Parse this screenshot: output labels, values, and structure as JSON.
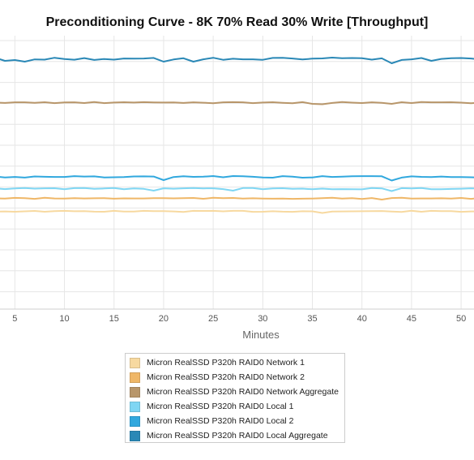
{
  "chart_data": {
    "type": "line",
    "title": "Preconditioning Curve - 8K 70% Read 30% Write [Throughput]",
    "xlabel": "Minutes",
    "ylabel": "",
    "x_visible_range": [
      3.5,
      51.3
    ],
    "x_ticks": [
      5,
      10,
      15,
      20,
      25,
      30,
      35,
      40,
      45,
      50
    ],
    "x_tick_labels": [
      "5",
      "10",
      "15",
      "20",
      "25",
      "30",
      "35",
      "40",
      "45",
      "50"
    ],
    "y_range_note": "y-axis values not visible",
    "grid": true,
    "legend_position": "bottom",
    "series": [
      {
        "name": "Micron RealSSD P320h RAID0 Network 1",
        "color": "#f7d9a0",
        "level": 260.5,
        "noise": 0.7,
        "dips": [
          [
            36,
            262.5
          ]
        ]
      },
      {
        "name": "Micron RealSSD P320h RAID0 Network 2",
        "color": "#efb768",
        "level": 244.5,
        "noise": 0.7,
        "dips": [
          [
            42,
            246
          ]
        ]
      },
      {
        "name": "Micron RealSSD P320h RAID0 Network Aggregate",
        "color": "#b8966a",
        "level": 126.5,
        "noise": 0.8,
        "dips": [
          [
            35,
            128
          ],
          [
            36,
            128.5
          ],
          [
            43,
            128
          ]
        ]
      },
      {
        "name": "Micron RealSSD P320h RAID0 Local 1",
        "color": "#7fd6f3",
        "level": 232.5,
        "noise": 0.9,
        "dips": [
          [
            19,
            235
          ],
          [
            27,
            235
          ],
          [
            43,
            235.5
          ]
        ]
      },
      {
        "name": "Micron RealSSD P320h RAID0 Local 2",
        "color": "#31a8de",
        "level": 218.0,
        "noise": 1.0,
        "dips": [
          [
            20,
            222
          ],
          [
            43,
            222.5
          ]
        ]
      },
      {
        "name": "Micron RealSSD P320h RAID0 Local Aggregate",
        "color": "#2a88b6",
        "level": 72.5,
        "noise": 1.5,
        "dips": [
          [
            4,
            75
          ],
          [
            6,
            76
          ],
          [
            20,
            76
          ],
          [
            23,
            76
          ],
          [
            43,
            78
          ],
          [
            47,
            75
          ]
        ]
      }
    ]
  }
}
